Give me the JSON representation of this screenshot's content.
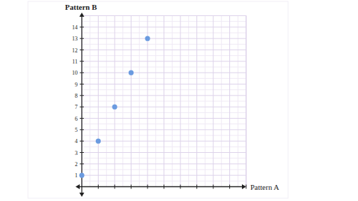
{
  "chart_data": {
    "type": "scatter",
    "x_label": "Pattern A",
    "y_label": "Pattern B",
    "x": [
      0,
      1,
      2,
      3,
      4
    ],
    "values": [
      1,
      4,
      7,
      10,
      13
    ],
    "color": "#6b9be0",
    "xlim": [
      0,
      10
    ],
    "xticks": [
      1,
      2,
      3,
      4,
      5,
      6,
      7,
      8,
      9,
      10
    ],
    "ylim": [
      0,
      15
    ],
    "yticks": [
      1,
      2,
      3,
      4,
      5,
      6,
      7,
      8,
      9,
      10,
      11,
      12,
      13,
      14
    ],
    "grid": true,
    "tick_labels": "y",
    "marker": "circle"
  }
}
